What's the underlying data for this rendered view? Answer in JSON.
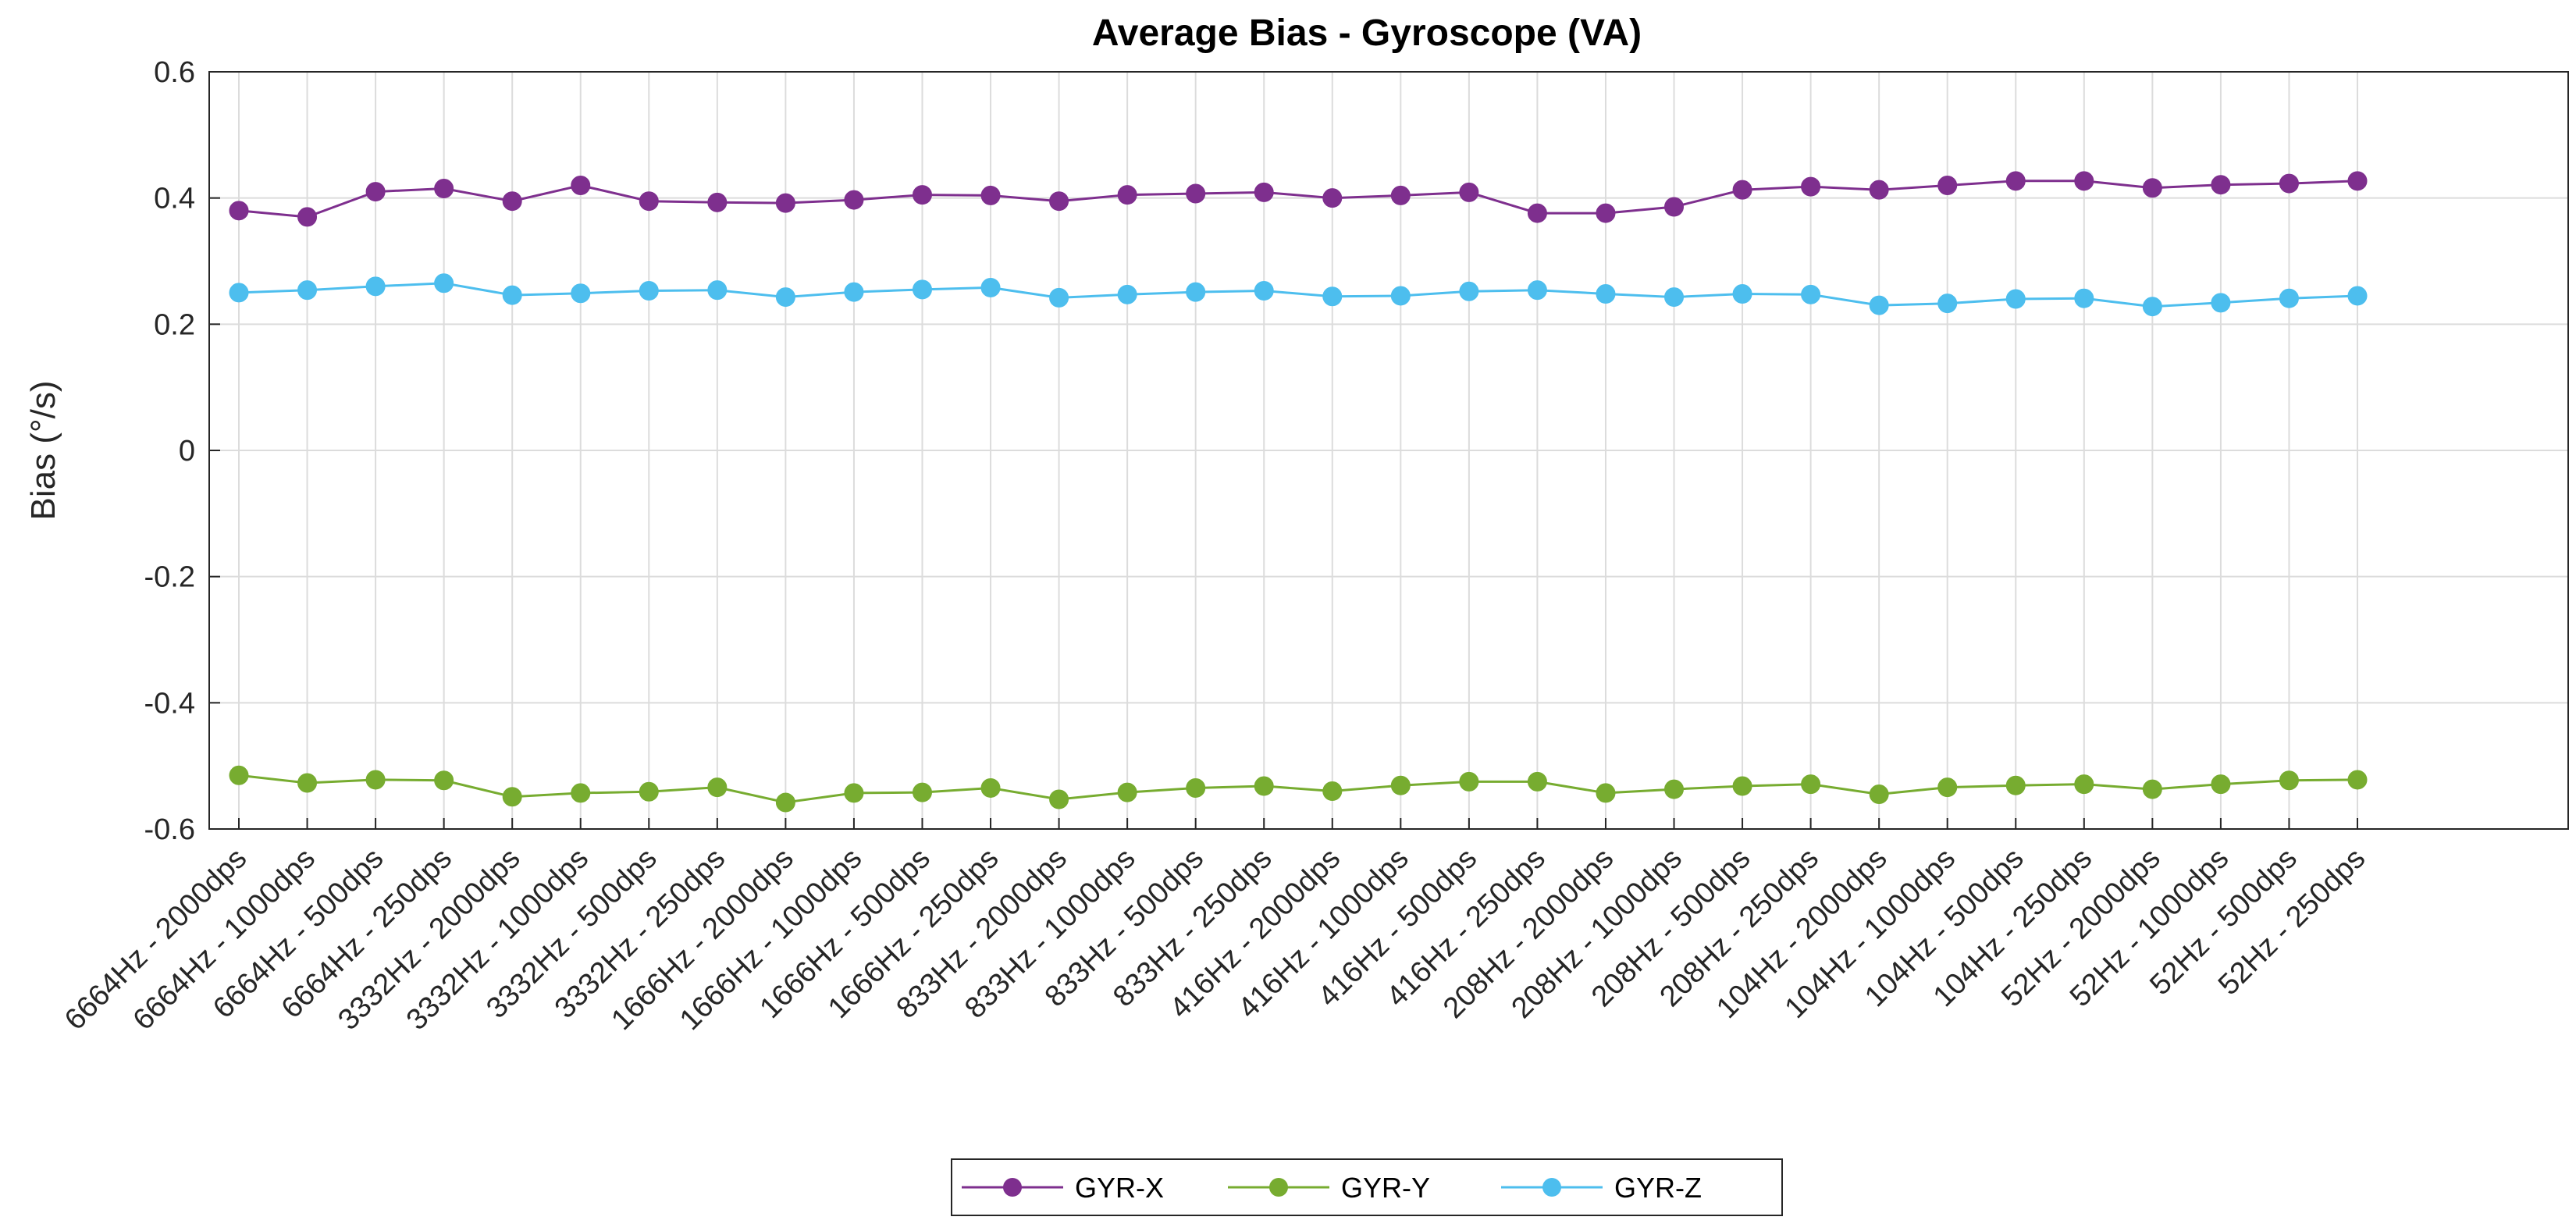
{
  "chart_data": {
    "type": "line",
    "title": "Average Bias - Gyroscope (VA)",
    "xlabel": "",
    "ylabel": "Bias (°/s)",
    "ylim": [
      -0.6,
      0.6
    ],
    "yticks": [
      0.6,
      0.4,
      0.2,
      0,
      -0.2,
      -0.4,
      -0.6
    ],
    "ytick_labels": [
      "0.6",
      "0.4",
      "0.2",
      "0",
      "-0.2",
      "-0.4",
      "-0.6"
    ],
    "grid": true,
    "legend_position": "bottom-center",
    "categories": [
      "6664Hz - 2000dps",
      "6664Hz - 1000dps",
      "6664Hz - 500dps",
      "6664Hz - 250dps",
      "3332Hz - 2000dps",
      "3332Hz - 1000dps",
      "3332Hz - 500dps",
      "3332Hz - 250dps",
      "1666Hz - 2000dps",
      "1666Hz - 1000dps",
      "1666Hz - 500dps",
      "1666Hz - 250dps",
      "833Hz - 2000dps",
      "833Hz - 1000dps",
      "833Hz - 500dps",
      "833Hz - 250dps",
      "416Hz - 2000dps",
      "416Hz - 1000dps",
      "416Hz - 500dps",
      "416Hz - 250dps",
      "208Hz - 2000dps",
      "208Hz - 1000dps",
      "208Hz - 500dps",
      "208Hz - 250dps",
      "104Hz - 2000dps",
      "104Hz - 1000dps",
      "104Hz - 500dps",
      "104Hz - 250dps",
      "52Hz - 2000dps",
      "52Hz - 1000dps",
      "52Hz - 500dps",
      "52Hz - 250dps"
    ],
    "series": [
      {
        "name": "GYR-X",
        "color": "#7E2F8E",
        "values": [
          0.38,
          0.37,
          0.41,
          0.415,
          0.395,
          0.42,
          0.395,
          0.393,
          0.392,
          0.397,
          0.405,
          0.404,
          0.395,
          0.405,
          0.407,
          0.409,
          0.4,
          0.404,
          0.409,
          0.376,
          0.376,
          0.386,
          0.413,
          0.418,
          0.413,
          0.42,
          0.427,
          0.427,
          0.416,
          0.421,
          0.423,
          0.427
        ]
      },
      {
        "name": "GYR-Y",
        "color": "#77AC30",
        "values": [
          -0.515,
          -0.527,
          -0.522,
          -0.523,
          -0.549,
          -0.543,
          -0.541,
          -0.534,
          -0.558,
          -0.543,
          -0.542,
          -0.535,
          -0.553,
          -0.542,
          -0.535,
          -0.532,
          -0.54,
          -0.531,
          -0.525,
          -0.525,
          -0.543,
          -0.537,
          -0.532,
          -0.529,
          -0.545,
          -0.534,
          -0.531,
          -0.529,
          -0.537,
          -0.529,
          -0.523,
          -0.522
        ]
      },
      {
        "name": "GYR-Z",
        "color": "#4DBEEE",
        "values": [
          0.25,
          0.254,
          0.26,
          0.265,
          0.246,
          0.249,
          0.253,
          0.254,
          0.243,
          0.251,
          0.255,
          0.258,
          0.242,
          0.247,
          0.251,
          0.253,
          0.244,
          0.245,
          0.252,
          0.254,
          0.248,
          0.243,
          0.248,
          0.247,
          0.23,
          0.233,
          0.24,
          0.241,
          0.228,
          0.234,
          0.241,
          0.245
        ]
      }
    ]
  }
}
